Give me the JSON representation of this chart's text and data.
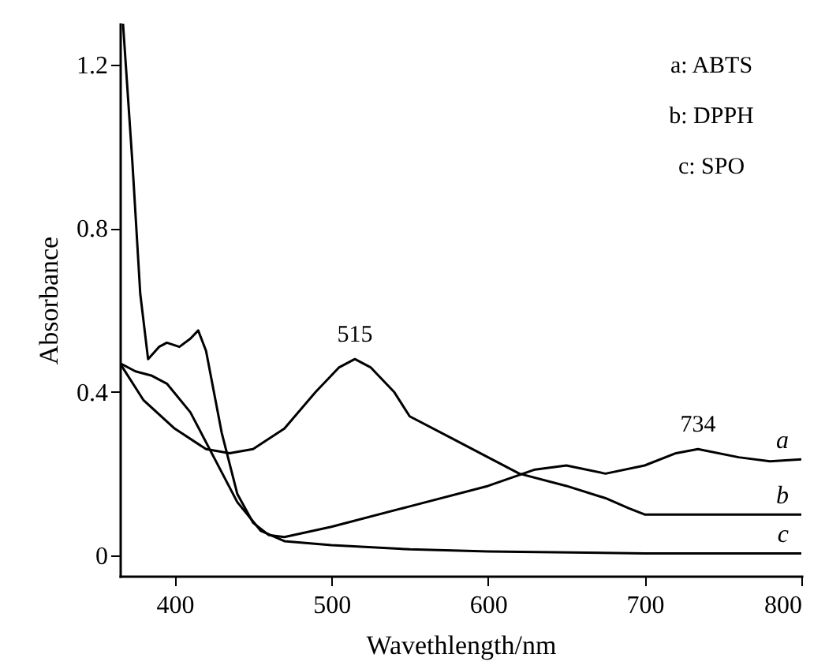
{
  "chart_data": {
    "type": "line",
    "xlabel": "Wavethlength/nm",
    "ylabel": "Absorbance",
    "xlim": [
      365,
      800
    ],
    "ylim": [
      -0.05,
      1.3
    ],
    "xticks": [
      400,
      500,
      600,
      700,
      800
    ],
    "yticks": [
      0,
      0.4,
      0.8,
      1.2
    ],
    "grid": false,
    "annotations": [
      "a: ABTS",
      "b: DPPH",
      "c: SPO",
      {
        "text": "515",
        "x": 515,
        "y": 0.48
      },
      {
        "text": "734",
        "x": 734,
        "y": 0.26
      }
    ],
    "series": [
      {
        "name": "a",
        "color": "#000000",
        "x": [
          367,
          373,
          378,
          383,
          390,
          395,
          403,
          410,
          415,
          420,
          430,
          440,
          450,
          460,
          470,
          500,
          550,
          600,
          630,
          650,
          675,
          700,
          720,
          734,
          760,
          780,
          800
        ],
        "values": [
          1.3,
          0.96,
          0.64,
          0.48,
          0.51,
          0.52,
          0.51,
          0.53,
          0.55,
          0.5,
          0.3,
          0.15,
          0.08,
          0.05,
          0.045,
          0.07,
          0.12,
          0.17,
          0.21,
          0.22,
          0.2,
          0.22,
          0.25,
          0.26,
          0.24,
          0.23,
          0.235
        ]
      },
      {
        "name": "b",
        "color": "#000000",
        "x": [
          365,
          380,
          400,
          420,
          435,
          450,
          470,
          490,
          505,
          515,
          525,
          540,
          550,
          575,
          600,
          620,
          650,
          675,
          690,
          700,
          800
        ],
        "values": [
          0.47,
          0.38,
          0.31,
          0.26,
          0.25,
          0.26,
          0.31,
          0.4,
          0.46,
          0.48,
          0.46,
          0.4,
          0.34,
          0.29,
          0.24,
          0.2,
          0.17,
          0.14,
          0.115,
          0.1,
          0.1
        ]
      },
      {
        "name": "c",
        "color": "#000000",
        "x": [
          365,
          375,
          385,
          395,
          410,
          425,
          440,
          455,
          470,
          500,
          550,
          600,
          700,
          800
        ],
        "values": [
          0.47,
          0.45,
          0.44,
          0.42,
          0.35,
          0.24,
          0.13,
          0.06,
          0.035,
          0.025,
          0.015,
          0.01,
          0.005,
          0.005
        ]
      }
    ]
  }
}
